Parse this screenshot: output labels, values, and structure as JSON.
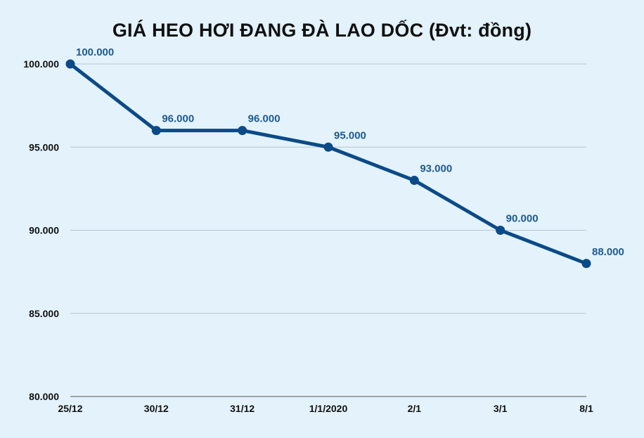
{
  "chart_data": {
    "type": "line",
    "title": "GIÁ HEO HƠI ĐANG ĐÀ LAO DỐC (Đvt: đồng)",
    "categories": [
      "25/12",
      "30/12",
      "31/12",
      "1/1/2020",
      "2/1",
      "3/1",
      "8/1"
    ],
    "series": [
      {
        "values": [
          100000,
          96000,
          96000,
          95000,
          93000,
          90000,
          88000
        ],
        "labels": [
          "100.000",
          "96.000",
          "96.000",
          "95.000",
          "93.000",
          "90.000",
          "88.000"
        ]
      }
    ],
    "yticks": [
      80000,
      85000,
      90000,
      95000,
      100000
    ],
    "ytick_labels": [
      "80.000",
      "85.000",
      "90.000",
      "95.000",
      "100.000"
    ],
    "ylim": [
      80000,
      100000
    ],
    "grid": true,
    "colors": {
      "line": "#0b4a86",
      "label": "#1f5a8e",
      "grid": "#b9c6d2",
      "background": "#e3f2fb"
    }
  }
}
